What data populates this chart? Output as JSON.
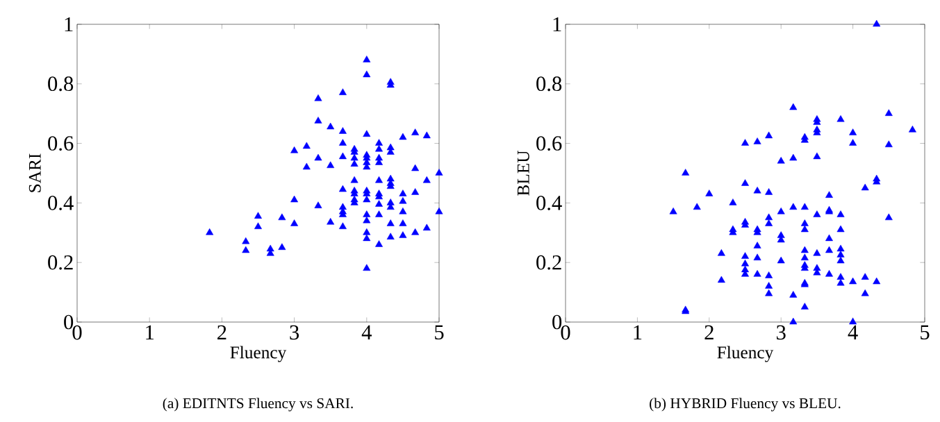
{
  "chart_data": [
    {
      "type": "scatter",
      "xlabel": "Fluency",
      "ylabel": "SARI",
      "annotations": [
        "(a) EDITNTS Fluency vs SARI."
      ],
      "marker": "triangle",
      "xlim": [
        0,
        5
      ],
      "ylim": [
        0,
        1
      ],
      "xticks": [
        0,
        1,
        2,
        3,
        4,
        5
      ],
      "yticks": [
        0,
        0.2,
        0.4,
        0.6,
        0.8,
        1
      ],
      "series": [
        {
          "color": "#0000ff",
          "x": [
            1.83,
            2.33,
            2.33,
            2.5,
            2.5,
            2.67,
            2.67,
            2.83,
            2.83,
            3.0,
            3.0,
            3.0,
            3.17,
            3.17,
            3.33,
            3.33,
            3.33,
            3.33,
            3.5,
            3.5,
            3.5,
            3.67,
            3.67,
            3.67,
            3.67,
            3.67,
            3.67,
            3.67,
            3.67,
            3.67,
            3.83,
            3.83,
            3.83,
            3.83,
            3.83,
            3.83,
            3.83,
            3.83,
            3.83,
            4.0,
            4.0,
            4.0,
            4.0,
            4.0,
            4.0,
            4.0,
            4.0,
            4.0,
            4.0,
            4.0,
            4.0,
            4.0,
            4.0,
            4.0,
            4.17,
            4.17,
            4.17,
            4.17,
            4.17,
            4.17,
            4.17,
            4.17,
            4.17,
            4.17,
            4.33,
            4.33,
            4.33,
            4.33,
            4.33,
            4.33,
            4.33,
            4.33,
            4.33,
            4.33,
            4.33,
            4.5,
            4.5,
            4.5,
            4.5,
            4.5,
            4.5,
            4.67,
            4.67,
            4.67,
            4.67,
            4.83,
            4.83,
            4.83,
            5.0,
            5.0
          ],
          "values": [
            0.3,
            0.27,
            0.24,
            0.355,
            0.32,
            0.245,
            0.23,
            0.35,
            0.25,
            0.575,
            0.41,
            0.33,
            0.59,
            0.52,
            0.75,
            0.675,
            0.55,
            0.39,
            0.655,
            0.525,
            0.335,
            0.77,
            0.64,
            0.6,
            0.555,
            0.445,
            0.385,
            0.37,
            0.36,
            0.32,
            0.58,
            0.57,
            0.55,
            0.53,
            0.475,
            0.44,
            0.43,
            0.41,
            0.4,
            0.88,
            0.83,
            0.63,
            0.56,
            0.55,
            0.535,
            0.52,
            0.44,
            0.43,
            0.41,
            0.36,
            0.34,
            0.3,
            0.28,
            0.18,
            0.6,
            0.58,
            0.55,
            0.535,
            0.475,
            0.43,
            0.42,
            0.395,
            0.36,
            0.26,
            0.805,
            0.795,
            0.585,
            0.57,
            0.48,
            0.465,
            0.455,
            0.4,
            0.385,
            0.33,
            0.285,
            0.62,
            0.43,
            0.405,
            0.37,
            0.33,
            0.29,
            0.635,
            0.515,
            0.435,
            0.3,
            0.625,
            0.475,
            0.315,
            0.5,
            0.37
          ]
        }
      ]
    },
    {
      "type": "scatter",
      "xlabel": "Fluency",
      "ylabel": "BLEU",
      "annotations": [
        "(b) HYBRID Fluency vs BLEU."
      ],
      "marker": "triangle",
      "xlim": [
        0,
        5
      ],
      "ylim": [
        0,
        1
      ],
      "xticks": [
        0,
        1,
        2,
        3,
        4,
        5
      ],
      "yticks": [
        0,
        0.2,
        0.4,
        0.6,
        0.8,
        1
      ],
      "series": [
        {
          "color": "#0000ff",
          "x": [
            1.5,
            1.67,
            1.67,
            1.67,
            1.83,
            2.0,
            2.17,
            2.17,
            2.33,
            2.33,
            2.33,
            2.5,
            2.5,
            2.5,
            2.5,
            2.5,
            2.5,
            2.5,
            2.5,
            2.67,
            2.67,
            2.67,
            2.67,
            2.67,
            2.67,
            2.67,
            2.83,
            2.83,
            2.83,
            2.83,
            2.83,
            2.83,
            2.83,
            3.0,
            3.0,
            3.0,
            3.0,
            3.0,
            3.17,
            3.17,
            3.17,
            3.17,
            3.17,
            3.33,
            3.33,
            3.33,
            3.33,
            3.33,
            3.33,
            3.33,
            3.33,
            3.33,
            3.33,
            3.33,
            3.33,
            3.5,
            3.5,
            3.5,
            3.5,
            3.5,
            3.5,
            3.5,
            3.5,
            3.5,
            3.67,
            3.67,
            3.67,
            3.67,
            3.67,
            3.67,
            3.83,
            3.83,
            3.83,
            3.83,
            3.83,
            3.83,
            3.83,
            3.83,
            4.0,
            4.0,
            4.0,
            4.0,
            4.17,
            4.17,
            4.17,
            4.33,
            4.33,
            4.33,
            4.33,
            4.5,
            4.5,
            4.5,
            4.83
          ],
          "values": [
            0.37,
            0.5,
            0.04,
            0.035,
            0.385,
            0.43,
            0.23,
            0.14,
            0.4,
            0.31,
            0.3,
            0.6,
            0.465,
            0.335,
            0.325,
            0.22,
            0.195,
            0.175,
            0.16,
            0.605,
            0.44,
            0.31,
            0.3,
            0.255,
            0.215,
            0.16,
            0.625,
            0.435,
            0.35,
            0.33,
            0.155,
            0.12,
            0.095,
            0.54,
            0.37,
            0.29,
            0.275,
            0.205,
            0.72,
            0.55,
            0.385,
            0.09,
            0.0,
            0.62,
            0.61,
            0.385,
            0.33,
            0.31,
            0.24,
            0.215,
            0.19,
            0.18,
            0.13,
            0.125,
            0.05,
            0.68,
            0.67,
            0.645,
            0.635,
            0.555,
            0.36,
            0.23,
            0.18,
            0.165,
            0.425,
            0.375,
            0.37,
            0.28,
            0.24,
            0.16,
            0.68,
            0.36,
            0.31,
            0.245,
            0.225,
            0.205,
            0.15,
            0.13,
            0.635,
            0.6,
            0.135,
            0.0,
            0.45,
            0.15,
            0.095,
            1.0,
            0.48,
            0.47,
            0.135,
            0.7,
            0.595,
            0.35,
            0.645
          ]
        }
      ]
    }
  ]
}
